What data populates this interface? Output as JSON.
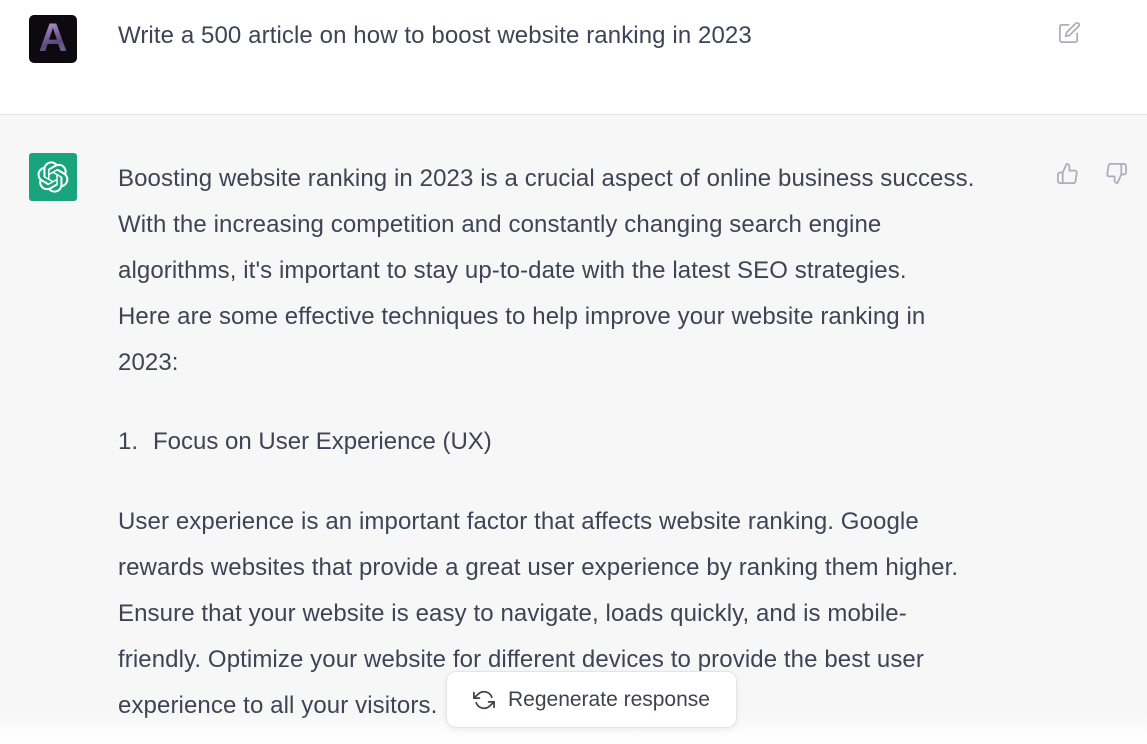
{
  "user_message": {
    "avatar_letter": "A",
    "text": "Write a 500 article on how to boost website ranking in 2023",
    "edit_icon": "pencil-square-icon"
  },
  "assistant_message": {
    "avatar_icon": "openai-logo-icon",
    "paragraph1_lines": [
      "Boosting website ranking in 2023 is a crucial aspect of online business success.",
      "With the increasing competition and constantly changing search engine",
      "algorithms, it's important to stay up-to-date with the latest SEO strategies.",
      "Here are some effective techniques to help improve your website ranking in",
      "2023:"
    ],
    "list_items": [
      {
        "number": "1.",
        "text": "Focus on User Experience (UX)"
      }
    ],
    "paragraph2_lines": [
      "User experience is an important factor that affects website ranking. Google",
      "rewards websites that provide a great user experience by ranking them higher.",
      "Ensure that your website is easy to navigate, loads quickly, and is mobile-",
      "friendly. Optimize your website for different devices to provide the best user",
      "experience to all your visitors."
    ],
    "feedback_icons": [
      "thumbs-up-icon",
      "thumbs-down-icon"
    ]
  },
  "regenerate": {
    "label": "Regenerate response",
    "icon": "refresh-icon"
  },
  "colors": {
    "assistant_bg": "#f7f7f8",
    "avatar_green": "#19a37f",
    "body_text": "#3d4455",
    "muted_icon": "#acacbe",
    "button_text": "#40414f",
    "divider": "#e4e4e7"
  }
}
